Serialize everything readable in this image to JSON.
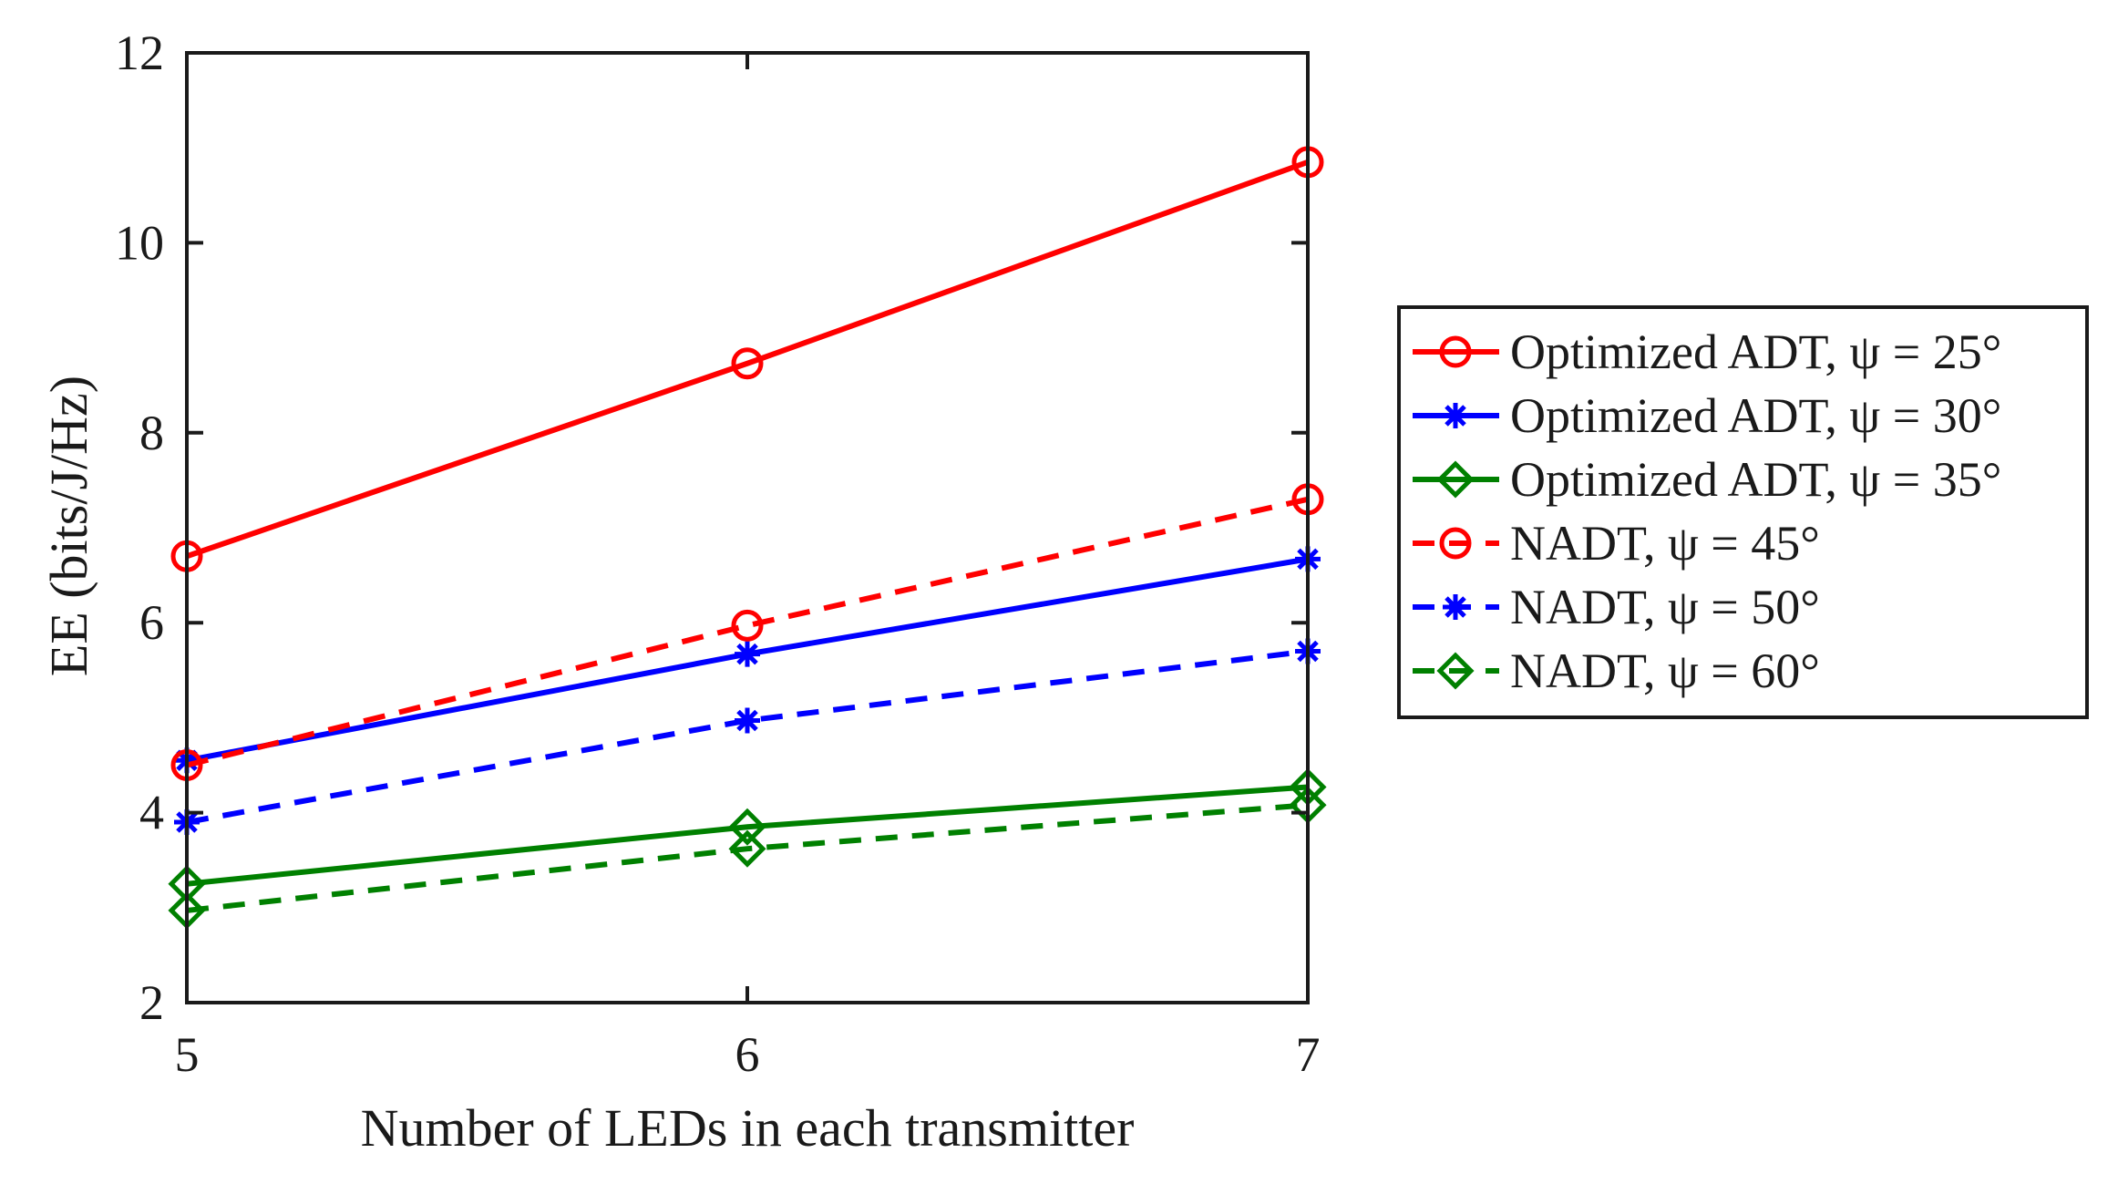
{
  "chart_data": {
    "type": "line",
    "title": "",
    "xlabel": "Number of LEDs in each transmitter",
    "ylabel": "EE (bits/J/Hz)",
    "x": [
      5,
      6,
      7
    ],
    "xlim": [
      5,
      7
    ],
    "ylim": [
      2,
      12
    ],
    "xticks": [
      "5",
      "6",
      "7"
    ],
    "yticks": [
      "2",
      "4",
      "6",
      "8",
      "10",
      "12"
    ],
    "grid": false,
    "legend_position": "right",
    "series": [
      {
        "name": "Optimized ADT,  ψ = 25°",
        "values": [
          6.7,
          8.73,
          10.85
        ],
        "color": "#ff0000",
        "dash": "solid",
        "marker": "circle"
      },
      {
        "name": "Optimized ADT,  ψ = 30°",
        "values": [
          4.55,
          5.67,
          6.67
        ],
        "color": "#0000ff",
        "dash": "solid",
        "marker": "asterisk"
      },
      {
        "name": "Optimized ADT,  ψ = 35°",
        "values": [
          3.25,
          3.85,
          4.27
        ],
        "color": "#008000",
        "dash": "solid",
        "marker": "diamond"
      },
      {
        "name": "NADT,  ψ = 45°",
        "values": [
          4.5,
          5.97,
          7.3
        ],
        "color": "#ff0000",
        "dash": "dashed",
        "marker": "circle"
      },
      {
        "name": "NADT,  ψ = 50°",
        "values": [
          3.9,
          4.97,
          5.7
        ],
        "color": "#0000ff",
        "dash": "dashed",
        "marker": "asterisk"
      },
      {
        "name": "NADT,  ψ = 60°",
        "values": [
          2.97,
          3.62,
          4.08
        ],
        "color": "#008000",
        "dash": "dashed",
        "marker": "diamond"
      }
    ]
  }
}
